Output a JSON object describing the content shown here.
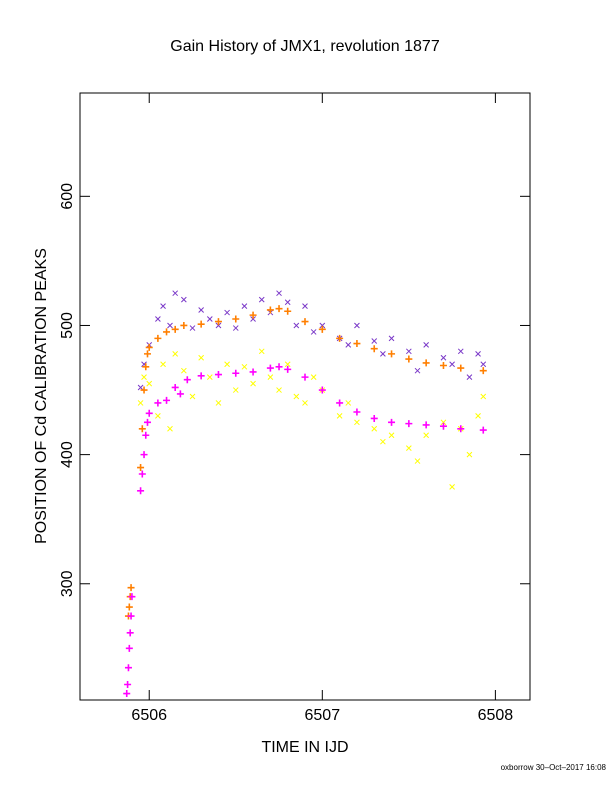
{
  "chart_data": {
    "type": "scatter",
    "title": "Gain History of JMX1, revolution 1877",
    "xlabel": "TIME IN IJD",
    "ylabel": "POSITION OF Cd CALIBRATION PEAKS",
    "footer": "oxborrow 30–Oct–2017 16:08",
    "xlim": [
      6505.6,
      6508.2
    ],
    "ylim": [
      210,
      680
    ],
    "xticks": [
      6506,
      6507,
      6508
    ],
    "yticks": [
      300,
      400,
      500,
      600
    ],
    "series": [
      {
        "color": "#7a38c8",
        "marker": "x",
        "x": [
          6505.95,
          6505.97,
          6506.0,
          6506.05,
          6506.08,
          6506.12,
          6506.15,
          6506.2,
          6506.25,
          6506.3,
          6506.35,
          6506.4,
          6506.45,
          6506.5,
          6506.55,
          6506.6,
          6506.65,
          6506.7,
          6506.75,
          6506.8,
          6506.85,
          6506.9,
          6506.95,
          6507.0,
          6507.1,
          6507.15,
          6507.2,
          6507.3,
          6507.35,
          6507.4,
          6507.5,
          6507.55,
          6507.6,
          6507.7,
          6507.75,
          6507.8,
          6507.85,
          6507.9,
          6507.93
        ],
        "values": [
          452,
          470,
          485,
          505,
          515,
          500,
          525,
          520,
          498,
          512,
          505,
          500,
          510,
          498,
          515,
          505,
          520,
          510,
          525,
          518,
          500,
          515,
          495,
          500,
          490,
          485,
          500,
          488,
          478,
          490,
          480,
          465,
          485,
          475,
          470,
          480,
          460,
          478,
          470
        ]
      },
      {
        "color": "#ffff00",
        "marker": "x",
        "x": [
          6505.95,
          6505.97,
          6506.0,
          6506.05,
          6506.08,
          6506.12,
          6506.15,
          6506.2,
          6506.25,
          6506.3,
          6506.35,
          6506.4,
          6506.45,
          6506.5,
          6506.55,
          6506.6,
          6506.65,
          6506.7,
          6506.75,
          6506.8,
          6506.85,
          6506.9,
          6506.95,
          6507.0,
          6507.1,
          6507.15,
          6507.2,
          6507.3,
          6507.35,
          6507.4,
          6507.5,
          6507.55,
          6507.6,
          6507.7,
          6507.75,
          6507.8,
          6507.85,
          6507.9,
          6507.93
        ],
        "values": [
          440,
          460,
          455,
          430,
          470,
          420,
          478,
          465,
          445,
          475,
          460,
          440,
          470,
          450,
          468,
          455,
          480,
          460,
          450,
          470,
          445,
          440,
          460,
          450,
          430,
          440,
          425,
          420,
          410,
          415,
          405,
          395,
          415,
          425,
          375,
          420,
          400,
          430,
          445
        ]
      },
      {
        "color": "#ff7f00",
        "marker": "+",
        "x": [
          6505.88,
          6505.885,
          6505.89,
          6505.895,
          6505.95,
          6505.96,
          6505.97,
          6505.98,
          6505.99,
          6506.0,
          6506.05,
          6506.1,
          6506.15,
          6506.2,
          6506.3,
          6506.4,
          6506.5,
          6506.6,
          6506.7,
          6506.75,
          6506.8,
          6506.9,
          6507.0,
          6507.1,
          6507.2,
          6507.3,
          6507.4,
          6507.5,
          6507.6,
          6507.7,
          6507.8,
          6507.93
        ],
        "values": [
          275,
          282,
          290,
          297,
          390,
          420,
          450,
          468,
          478,
          483,
          490,
          495,
          497,
          500,
          501,
          503,
          505,
          508,
          512,
          513,
          511,
          503,
          497,
          490,
          486,
          482,
          478,
          474,
          471,
          469,
          467,
          465
        ]
      },
      {
        "color": "#ff00ff",
        "marker": "+",
        "x": [
          6505.87,
          6505.875,
          6505.88,
          6505.885,
          6505.89,
          6505.895,
          6505.9,
          6505.95,
          6505.96,
          6505.97,
          6505.98,
          6505.99,
          6506.0,
          6506.05,
          6506.1,
          6506.15,
          6506.18,
          6506.22,
          6506.3,
          6506.4,
          6506.5,
          6506.6,
          6506.7,
          6506.75,
          6506.8,
          6506.9,
          6507.0,
          6507.1,
          6507.2,
          6507.3,
          6507.4,
          6507.5,
          6507.6,
          6507.7,
          6507.8,
          6507.93
        ],
        "values": [
          215,
          222,
          235,
          250,
          262,
          275,
          290,
          372,
          385,
          400,
          415,
          425,
          432,
          440,
          442,
          452,
          447,
          458,
          461,
          462,
          463,
          464,
          467,
          468,
          466,
          460,
          450,
          440,
          433,
          428,
          425,
          424,
          423,
          422,
          420,
          419
        ]
      }
    ]
  }
}
